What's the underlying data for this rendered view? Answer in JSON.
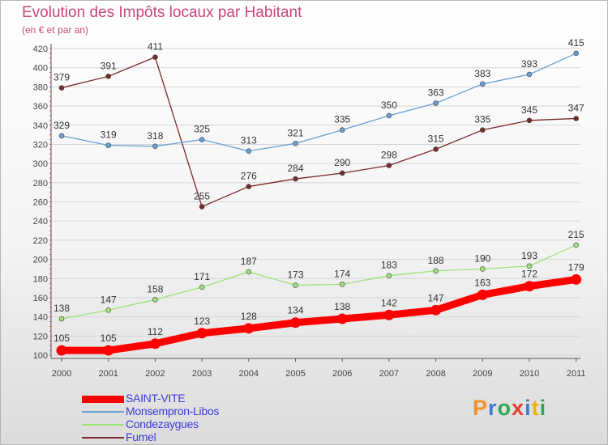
{
  "header": {
    "title": "Evolution des Impôts locaux par Habitant",
    "subtitle": "(en € et par an)"
  },
  "logo": {
    "letters": [
      "P",
      "r",
      "o",
      "x",
      "i",
      "t",
      "i"
    ]
  },
  "chart_data": {
    "type": "line",
    "categories": [
      "2000",
      "2001",
      "2002",
      "2003",
      "2004",
      "2005",
      "2006",
      "2007",
      "2008",
      "2009",
      "2010",
      "2011"
    ],
    "ylim": [
      100,
      420
    ],
    "yticks": [
      100,
      120,
      140,
      160,
      180,
      200,
      220,
      240,
      260,
      280,
      300,
      320,
      340,
      360,
      380,
      400,
      420
    ],
    "grid": "horizontal",
    "legend_position": "bottom-left",
    "series": [
      {
        "name": "Fumel",
        "color": "#7a2a2a",
        "values": [
          379,
          391,
          411,
          255,
          276,
          284,
          290,
          298,
          315,
          335,
          345,
          347
        ]
      },
      {
        "name": "Monsempron-Libos",
        "color": "#6a9fd4",
        "values": [
          329,
          319,
          318,
          325,
          313,
          321,
          335,
          350,
          363,
          383,
          393,
          415
        ]
      },
      {
        "name": "Condezaygues",
        "color": "#9fe07a",
        "values": [
          138,
          147,
          158,
          171,
          187,
          173,
          174,
          183,
          188,
          190,
          193,
          215
        ]
      },
      {
        "name": "SAINT-VITE",
        "color": "#ff0000",
        "values": [
          105,
          105,
          112,
          123,
          128,
          134,
          138,
          142,
          147,
          163,
          172,
          179
        ]
      }
    ],
    "legend_order": [
      "SAINT-VITE",
      "Monsempron-Libos",
      "Condezaygues",
      "Fumel"
    ]
  }
}
